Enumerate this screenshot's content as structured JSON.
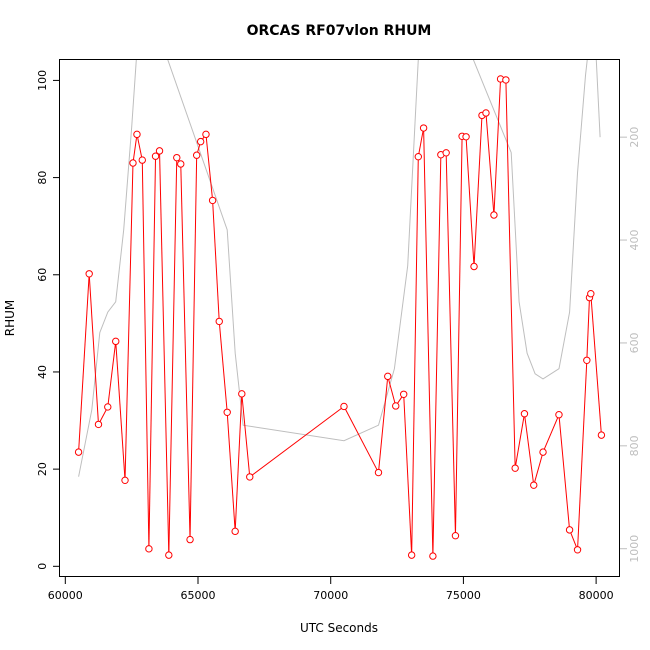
{
  "chart_data": {
    "type": "line",
    "title": "ORCAS RF07vlon RHUM",
    "xlabel": "UTC Seconds",
    "ylabel": "RHUM",
    "xlim": [
      59800,
      80900
    ],
    "ylim": [
      -2.2,
      104.2
    ],
    "x_ticks": [
      60000,
      65000,
      70000,
      75000,
      80000
    ],
    "y_ticks": [
      0,
      20,
      40,
      60,
      80,
      100
    ],
    "secondary_axis": {
      "side": "right",
      "reversed": true,
      "range": [
        50,
        1055
      ],
      "ticks": [
        200,
        400,
        600,
        800,
        1000
      ],
      "color": "#bebebe"
    },
    "series": [
      {
        "color": "#ff0000",
        "marker": "open-circle",
        "axis": "left",
        "x": [
          60500,
          60900,
          61250,
          61600,
          61900,
          62250,
          62550,
          62700,
          62900,
          63150,
          63400,
          63550,
          63900,
          64200,
          64350,
          64700,
          64950,
          65100,
          65300,
          65550,
          65800,
          66100,
          66400,
          66650,
          66950,
          70500,
          71800,
          72150,
          72450,
          72750,
          73050,
          73300,
          73500,
          73850,
          74150,
          74350,
          74700,
          74950,
          75100,
          75400,
          75700,
          75850,
          76150,
          76400,
          76600,
          76950,
          77300,
          77650,
          78000,
          78600,
          79000,
          79300,
          79650,
          79750,
          79800,
          80200
        ],
        "y": [
          23.5,
          60.2,
          29.2,
          32.8,
          46.3,
          17.7,
          83.0,
          88.9,
          83.6,
          3.6,
          84.4,
          85.5,
          2.3,
          84.1,
          82.8,
          5.5,
          84.6,
          87.4,
          88.9,
          75.3,
          50.4,
          31.7,
          7.2,
          35.5,
          18.4,
          32.9,
          19.3,
          39.1,
          33.0,
          35.4,
          2.3,
          84.3,
          90.2,
          2.1,
          84.7,
          85.1,
          6.3,
          88.5,
          88.4,
          61.7,
          92.8,
          93.3,
          72.3,
          100.3,
          100.1,
          20.2,
          31.4,
          16.7,
          23.5,
          31.2,
          7.5,
          3.4,
          42.4,
          55.3,
          56.1,
          27.0
        ]
      },
      {
        "color": "#bebebe",
        "marker": "none",
        "axis": "right",
        "x": [
          60500,
          61000,
          61300,
          61600,
          61900,
          62200,
          62500,
          62700,
          62850,
          66100,
          66400,
          66700,
          70500,
          71800,
          72400,
          72900,
          73200,
          73500,
          73800,
          76800,
          77100,
          77400,
          77700,
          78000,
          78600,
          79000,
          79300,
          79600,
          79900,
          80150
        ],
        "y": [
          860,
          730,
          580,
          540,
          520,
          380,
          180,
          30,
          -100,
          380,
          620,
          760,
          790,
          760,
          650,
          450,
          150,
          -150,
          -150,
          230,
          520,
          620,
          660,
          670,
          650,
          540,
          270,
          80,
          -60,
          200
        ]
      }
    ]
  }
}
